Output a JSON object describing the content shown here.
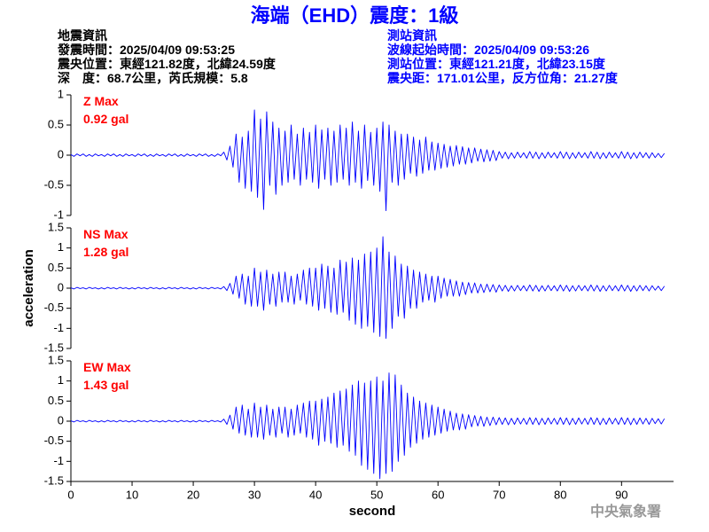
{
  "header": {
    "title": "海端（EHD）震度：1級",
    "left": [
      "地震資訊",
      "發震時間：2025/04/09 09:53:25",
      "震央位置：東經121.82度，北緯24.59度",
      "深　度：68.7公里，芮氏規模：5.8"
    ],
    "right": [
      "測站資訊",
      "波線起始時間：2025/04/09 09:53:26",
      "測站位置：東經121.21度，北緯23.15度",
      "震央距：171.01公里，反方位角：21.27度"
    ]
  },
  "footer": "中央氣象署",
  "chart_data": [
    {
      "type": "line",
      "annotations": [
        "Z Max",
        "0.92 gal"
      ],
      "color": "#0000ff",
      "xlim": [
        0,
        98.5
      ],
      "ylim": [
        -1,
        1
      ],
      "yticks": [
        -1,
        -0.5,
        0,
        0.5,
        1
      ],
      "x": [
        0,
        0.5,
        1,
        1.5,
        2,
        2.5,
        3,
        3.5,
        4,
        4.5,
        5,
        5.5,
        6,
        6.5,
        7,
        7.5,
        8,
        8.5,
        9,
        9.5,
        10,
        10.5,
        11,
        11.5,
        12,
        12.5,
        13,
        13.5,
        14,
        14.5,
        15,
        15.5,
        16,
        16.5,
        17,
        17.5,
        18,
        18.5,
        19,
        19.5,
        20,
        20.5,
        21,
        21.5,
        22,
        22.5,
        23,
        23.5,
        24,
        24.5,
        25,
        25.5,
        26,
        26.5,
        27,
        27.5,
        28,
        28.5,
        29,
        29.5,
        30,
        30.5,
        31,
        31.5,
        32,
        32.5,
        33,
        33.5,
        34,
        34.5,
        35,
        35.5,
        36,
        36.5,
        37,
        37.5,
        38,
        38.5,
        39,
        39.5,
        40,
        40.5,
        41,
        41.5,
        42,
        42.5,
        43,
        43.5,
        44,
        44.5,
        45,
        45.5,
        46,
        46.5,
        47,
        47.5,
        48,
        48.5,
        49,
        49.5,
        50,
        50.5,
        51,
        51.5,
        52,
        52.5,
        53,
        53.5,
        54,
        54.5,
        55,
        55.5,
        56,
        56.5,
        57,
        57.5,
        58,
        58.5,
        59,
        59.5,
        60,
        60.5,
        61,
        61.5,
        62,
        62.5,
        63,
        63.5,
        64,
        64.5,
        65,
        65.5,
        66,
        66.5,
        67,
        67.5,
        68,
        68.5,
        69,
        69.5,
        70,
        70.5,
        71,
        71.5,
        72,
        72.5,
        73,
        73.5,
        74,
        74.5,
        75,
        75.5,
        76,
        76.5,
        77,
        77.5,
        78,
        78.5,
        79,
        79.5,
        80,
        80.5,
        81,
        81.5,
        82,
        82.5,
        83,
        83.5,
        84,
        84.5,
        85,
        85.5,
        86,
        86.5,
        87,
        87.5,
        88,
        88.5,
        89,
        89.5,
        90,
        90.5,
        91,
        91.5,
        92,
        92.5,
        93,
        93.5,
        94,
        94.5,
        95,
        95.5,
        96,
        96.5,
        97
      ],
      "values": [
        0.01,
        -0.02,
        0.02,
        -0.01,
        0.02,
        -0.02,
        0.01,
        -0.02,
        0.02,
        -0.01,
        0.01,
        -0.02,
        0.02,
        -0.01,
        0.02,
        -0.02,
        0.01,
        -0.02,
        0.02,
        -0.01,
        0.01,
        -0.02,
        0.02,
        -0.01,
        0.02,
        -0.02,
        0.01,
        -0.02,
        0.02,
        -0.01,
        0.01,
        -0.02,
        0.02,
        -0.01,
        0.02,
        -0.02,
        0.01,
        -0.02,
        0.02,
        -0.01,
        0.01,
        -0.02,
        0.02,
        -0.01,
        0.02,
        -0.02,
        0.01,
        -0.02,
        0.02,
        -0.01,
        0.05,
        -0.08,
        0.15,
        -0.2,
        0.35,
        -0.45,
        0.3,
        -0.55,
        0.4,
        -0.6,
        0.75,
        -0.7,
        0.6,
        -0.9,
        0.72,
        -0.5,
        0.55,
        -0.65,
        0.45,
        -0.5,
        0.4,
        -0.45,
        0.5,
        -0.4,
        0.35,
        -0.5,
        0.45,
        -0.4,
        0.38,
        -0.45,
        0.5,
        -0.55,
        0.42,
        -0.4,
        0.45,
        -0.5,
        0.4,
        -0.45,
        0.5,
        -0.4,
        0.45,
        -0.5,
        0.55,
        -0.45,
        0.4,
        -0.55,
        0.5,
        -0.42,
        0.38,
        -0.5,
        0.45,
        -0.6,
        0.55,
        -0.92,
        0.5,
        -0.45,
        0.4,
        -0.5,
        0.35,
        -0.4,
        0.35,
        -0.3,
        0.3,
        -0.35,
        0.25,
        -0.3,
        0.3,
        -0.25,
        0.22,
        -0.25,
        0.2,
        -0.22,
        0.18,
        -0.2,
        0.15,
        -0.18,
        0.16,
        -0.15,
        0.14,
        -0.15,
        0.12,
        -0.13,
        0.12,
        -0.1,
        0.1,
        -0.11,
        0.09,
        -0.1,
        0.08,
        -0.09,
        0.06,
        -0.05,
        0.05,
        -0.06,
        0.04,
        -0.05,
        0.05,
        -0.04,
        0.04,
        -0.05,
        0.06,
        -0.05,
        0.05,
        -0.06,
        0.04,
        -0.05,
        0.05,
        -0.04,
        0.04,
        -0.05,
        0.06,
        -0.05,
        0.05,
        -0.06,
        0.04,
        -0.05,
        0.05,
        -0.04,
        0.04,
        -0.05,
        0.06,
        -0.05,
        0.05,
        -0.06,
        0.04,
        -0.05,
        0.05,
        -0.04,
        0.04,
        -0.05,
        0.06,
        -0.05,
        0.05,
        -0.06,
        0.04,
        -0.05,
        0.05,
        -0.04,
        0.04,
        -0.05,
        0.04,
        -0.04,
        0.03,
        -0.04,
        0.03
      ]
    },
    {
      "type": "line",
      "annotations": [
        "NS Max",
        "1.28 gal"
      ],
      "color": "#0000ff",
      "ylabel": "acceleration",
      "xlim": [
        0,
        98.5
      ],
      "ylim": [
        -1.5,
        1.5
      ],
      "yticks": [
        -1.5,
        -1,
        -0.5,
        0,
        0.5,
        1,
        1.5
      ],
      "x": [
        0,
        0.5,
        1,
        1.5,
        2,
        2.5,
        3,
        3.5,
        4,
        4.5,
        5,
        5.5,
        6,
        6.5,
        7,
        7.5,
        8,
        8.5,
        9,
        9.5,
        10,
        10.5,
        11,
        11.5,
        12,
        12.5,
        13,
        13.5,
        14,
        14.5,
        15,
        15.5,
        16,
        16.5,
        17,
        17.5,
        18,
        18.5,
        19,
        19.5,
        20,
        20.5,
        21,
        21.5,
        22,
        22.5,
        23,
        23.5,
        24,
        24.5,
        25,
        25.5,
        26,
        26.5,
        27,
        27.5,
        28,
        28.5,
        29,
        29.5,
        30,
        30.5,
        31,
        31.5,
        32,
        32.5,
        33,
        33.5,
        34,
        34.5,
        35,
        35.5,
        36,
        36.5,
        37,
        37.5,
        38,
        38.5,
        39,
        39.5,
        40,
        40.5,
        41,
        41.5,
        42,
        42.5,
        43,
        43.5,
        44,
        44.5,
        45,
        45.5,
        46,
        46.5,
        47,
        47.5,
        48,
        48.5,
        49,
        49.5,
        50,
        50.5,
        51,
        51.5,
        52,
        52.5,
        53,
        53.5,
        54,
        54.5,
        55,
        55.5,
        56,
        56.5,
        57,
        57.5,
        58,
        58.5,
        59,
        59.5,
        60,
        60.5,
        61,
        61.5,
        62,
        62.5,
        63,
        63.5,
        64,
        64.5,
        65,
        65.5,
        66,
        66.5,
        67,
        67.5,
        68,
        68.5,
        69,
        69.5,
        70,
        70.5,
        71,
        71.5,
        72,
        72.5,
        73,
        73.5,
        74,
        74.5,
        75,
        75.5,
        76,
        76.5,
        77,
        77.5,
        78,
        78.5,
        79,
        79.5,
        80,
        80.5,
        81,
        81.5,
        82,
        82.5,
        83,
        83.5,
        84,
        84.5,
        85,
        85.5,
        86,
        86.5,
        87,
        87.5,
        88,
        88.5,
        89,
        89.5,
        90,
        90.5,
        91,
        91.5,
        92,
        92.5,
        93,
        93.5,
        94,
        94.5,
        95,
        95.5,
        96,
        96.5,
        97
      ],
      "values": [
        0.01,
        -0.02,
        0.02,
        -0.01,
        0.01,
        -0.02,
        0.02,
        -0.01,
        0.01,
        -0.02,
        0.01,
        -0.02,
        0.02,
        -0.01,
        0.01,
        -0.02,
        0.02,
        -0.01,
        0.01,
        -0.02,
        0.01,
        -0.02,
        0.02,
        -0.01,
        0.01,
        -0.02,
        0.02,
        -0.01,
        0.01,
        -0.02,
        0.01,
        -0.02,
        0.02,
        -0.01,
        0.01,
        -0.02,
        0.02,
        -0.01,
        0.01,
        -0.02,
        0.01,
        -0.02,
        0.02,
        -0.01,
        0.01,
        -0.02,
        0.02,
        -0.01,
        0.01,
        -0.02,
        0.04,
        -0.06,
        0.12,
        -0.15,
        0.3,
        -0.25,
        0.35,
        -0.4,
        0.3,
        -0.45,
        0.5,
        -0.45,
        0.4,
        -0.55,
        0.45,
        -0.4,
        0.35,
        -0.45,
        0.4,
        -0.35,
        0.4,
        -0.35,
        0.3,
        -0.4,
        0.35,
        -0.3,
        0.45,
        -0.4,
        0.5,
        -0.45,
        0.5,
        -0.55,
        0.6,
        -0.5,
        0.55,
        -0.6,
        0.5,
        -0.65,
        0.7,
        -0.6,
        0.65,
        -0.8,
        0.75,
        -0.9,
        0.7,
        -1.0,
        0.85,
        -0.95,
        0.9,
        -1.1,
        1.0,
        -1.2,
        1.28,
        -1.25,
        0.9,
        -1.0,
        0.8,
        -0.7,
        0.6,
        -0.75,
        0.55,
        -0.5,
        0.45,
        -0.5,
        0.4,
        -0.35,
        0.35,
        -0.3,
        0.3,
        -0.35,
        0.3,
        -0.25,
        0.25,
        -0.2,
        0.22,
        -0.2,
        0.18,
        -0.2,
        0.15,
        -0.16,
        0.14,
        -0.12,
        0.13,
        -0.12,
        0.1,
        -0.11,
        0.1,
        -0.09,
        0.09,
        -0.1,
        0.08,
        -0.07,
        0.07,
        -0.08,
        0.06,
        -0.07,
        0.07,
        -0.06,
        0.06,
        -0.07,
        0.08,
        -0.07,
        0.07,
        -0.08,
        0.06,
        -0.07,
        0.07,
        -0.06,
        0.06,
        -0.07,
        0.08,
        -0.07,
        0.07,
        -0.08,
        0.06,
        -0.07,
        0.07,
        -0.06,
        0.06,
        -0.07,
        0.08,
        -0.07,
        0.07,
        -0.08,
        0.06,
        -0.07,
        0.07,
        -0.06,
        0.06,
        -0.07,
        0.08,
        -0.07,
        0.07,
        -0.08,
        0.06,
        -0.07,
        0.07,
        -0.06,
        0.06,
        -0.07,
        0.06,
        -0.05,
        0.05,
        -0.06,
        0.05
      ]
    },
    {
      "type": "line",
      "annotations": [
        "EW Max",
        "1.43 gal"
      ],
      "color": "#0000ff",
      "xlabel": "second",
      "xlim": [
        0,
        98.5
      ],
      "xticks": [
        0,
        10,
        20,
        30,
        40,
        50,
        60,
        70,
        80,
        90
      ],
      "ylim": [
        -1.5,
        1.5
      ],
      "yticks": [
        -1.5,
        -1,
        -0.5,
        0,
        0.5,
        1,
        1.5
      ],
      "x": [
        0,
        0.5,
        1,
        1.5,
        2,
        2.5,
        3,
        3.5,
        4,
        4.5,
        5,
        5.5,
        6,
        6.5,
        7,
        7.5,
        8,
        8.5,
        9,
        9.5,
        10,
        10.5,
        11,
        11.5,
        12,
        12.5,
        13,
        13.5,
        14,
        14.5,
        15,
        15.5,
        16,
        16.5,
        17,
        17.5,
        18,
        18.5,
        19,
        19.5,
        20,
        20.5,
        21,
        21.5,
        22,
        22.5,
        23,
        23.5,
        24,
        24.5,
        25,
        25.5,
        26,
        26.5,
        27,
        27.5,
        28,
        28.5,
        29,
        29.5,
        30,
        30.5,
        31,
        31.5,
        32,
        32.5,
        33,
        33.5,
        34,
        34.5,
        35,
        35.5,
        36,
        36.5,
        37,
        37.5,
        38,
        38.5,
        39,
        39.5,
        40,
        40.5,
        41,
        41.5,
        42,
        42.5,
        43,
        43.5,
        44,
        44.5,
        45,
        45.5,
        46,
        46.5,
        47,
        47.5,
        48,
        48.5,
        49,
        49.5,
        50,
        50.5,
        51,
        51.5,
        52,
        52.5,
        53,
        53.5,
        54,
        54.5,
        55,
        55.5,
        56,
        56.5,
        57,
        57.5,
        58,
        58.5,
        59,
        59.5,
        60,
        60.5,
        61,
        61.5,
        62,
        62.5,
        63,
        63.5,
        64,
        64.5,
        65,
        65.5,
        66,
        66.5,
        67,
        67.5,
        68,
        68.5,
        69,
        69.5,
        70,
        70.5,
        71,
        71.5,
        72,
        72.5,
        73,
        73.5,
        74,
        74.5,
        75,
        75.5,
        76,
        76.5,
        77,
        77.5,
        78,
        78.5,
        79,
        79.5,
        80,
        80.5,
        81,
        81.5,
        82,
        82.5,
        83,
        83.5,
        84,
        84.5,
        85,
        85.5,
        86,
        86.5,
        87,
        87.5,
        88,
        88.5,
        89,
        89.5,
        90,
        90.5,
        91,
        91.5,
        92,
        92.5,
        93,
        93.5,
        94,
        94.5,
        95,
        95.5,
        96,
        96.5,
        97
      ],
      "values": [
        0.01,
        -0.02,
        0.02,
        -0.01,
        0.01,
        -0.02,
        0.02,
        -0.01,
        0.01,
        -0.02,
        0.01,
        -0.02,
        0.02,
        -0.01,
        0.01,
        -0.02,
        0.02,
        -0.01,
        0.01,
        -0.02,
        0.01,
        -0.02,
        0.02,
        -0.01,
        0.01,
        -0.02,
        0.02,
        -0.01,
        0.01,
        -0.02,
        0.01,
        -0.02,
        0.02,
        -0.01,
        0.01,
        -0.02,
        0.02,
        -0.01,
        0.01,
        -0.02,
        0.01,
        -0.02,
        0.02,
        -0.01,
        0.01,
        -0.02,
        0.02,
        -0.01,
        0.01,
        -0.02,
        0.05,
        -0.08,
        0.15,
        -0.2,
        0.35,
        -0.3,
        0.4,
        -0.35,
        0.3,
        -0.4,
        0.45,
        -0.4,
        0.35,
        -0.45,
        0.4,
        -0.35,
        0.3,
        -0.4,
        0.35,
        -0.3,
        0.35,
        -0.4,
        0.3,
        -0.35,
        0.4,
        -0.3,
        0.45,
        -0.4,
        0.5,
        -0.45,
        0.5,
        -0.6,
        0.55,
        -0.5,
        0.6,
        -0.55,
        0.7,
        -0.65,
        0.75,
        -0.6,
        0.8,
        -0.75,
        0.9,
        -0.85,
        1.0,
        -1.1,
        0.95,
        -1.2,
        1.0,
        -1.3,
        1.1,
        -1.43,
        1.0,
        -1.3,
        1.2,
        -1.25,
        1.15,
        -1.0,
        0.9,
        -0.85,
        0.7,
        -0.65,
        0.6,
        -0.55,
        0.5,
        -0.45,
        0.45,
        -0.4,
        0.4,
        -0.35,
        0.35,
        -0.3,
        0.3,
        -0.25,
        0.25,
        -0.22,
        0.2,
        -0.22,
        0.18,
        -0.2,
        0.16,
        -0.14,
        0.14,
        -0.12,
        0.12,
        -0.13,
        0.1,
        -0.11,
        0.1,
        -0.09,
        0.09,
        -0.08,
        0.08,
        -0.09,
        0.07,
        -0.08,
        0.08,
        -0.07,
        0.07,
        -0.08,
        0.09,
        -0.08,
        0.08,
        -0.09,
        0.07,
        -0.08,
        0.08,
        -0.07,
        0.07,
        -0.08,
        0.09,
        -0.08,
        0.08,
        -0.09,
        0.07,
        -0.08,
        0.08,
        -0.07,
        0.07,
        -0.08,
        0.09,
        -0.08,
        0.08,
        -0.09,
        0.07,
        -0.08,
        0.08,
        -0.07,
        0.07,
        -0.08,
        0.09,
        -0.08,
        0.08,
        -0.09,
        0.07,
        -0.08,
        0.08,
        -0.07,
        0.07,
        -0.08,
        0.07,
        -0.06,
        0.06,
        -0.07,
        0.06
      ]
    }
  ]
}
